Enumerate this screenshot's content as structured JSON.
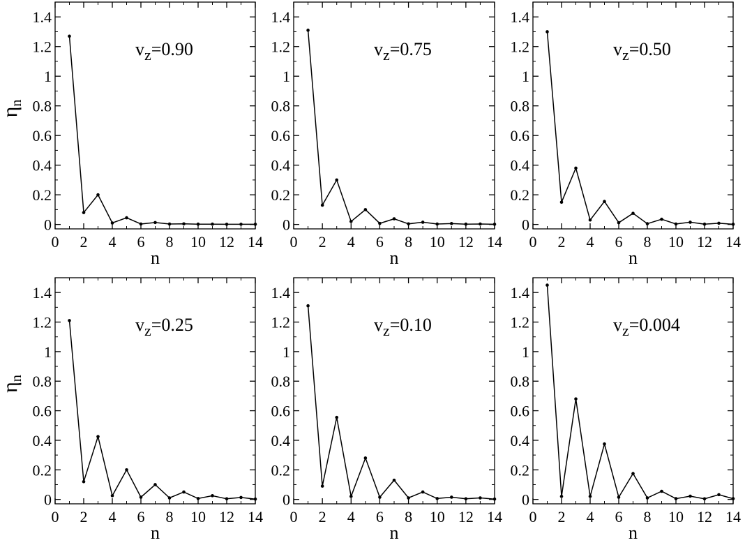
{
  "chart_data": [
    {
      "type": "line",
      "annotation": {
        "symbol": "v",
        "subscript": "z",
        "value": "=0.90"
      },
      "xlabel": "n",
      "ylabel": {
        "symbol": "η",
        "subscript": "n"
      },
      "xlim": [
        0,
        14
      ],
      "ylim": [
        -0.03,
        1.5
      ],
      "xticks": [
        0,
        2,
        4,
        6,
        8,
        10,
        12,
        14
      ],
      "yticks": [
        0,
        0.2,
        0.4,
        0.6,
        0.8,
        1,
        1.2,
        1.4
      ],
      "grid": false,
      "x": [
        1,
        2,
        3,
        4,
        5,
        6,
        7,
        8,
        9,
        10,
        11,
        12,
        13,
        14
      ],
      "y": [
        1.27,
        0.08,
        0.2,
        0.01,
        0.045,
        0.003,
        0.013,
        0.003,
        0.004,
        0.002,
        0.002,
        0.001,
        0.001,
        0.001
      ]
    },
    {
      "type": "line",
      "annotation": {
        "symbol": "v",
        "subscript": "z",
        "value": "=0.75"
      },
      "xlabel": "n",
      "ylabel": null,
      "xlim": [
        0,
        14
      ],
      "ylim": [
        -0.03,
        1.5
      ],
      "xticks": [
        0,
        2,
        4,
        6,
        8,
        10,
        12,
        14
      ],
      "yticks": [
        0,
        0.2,
        0.4,
        0.6,
        0.8,
        1,
        1.2,
        1.4
      ],
      "grid": false,
      "x": [
        1,
        2,
        3,
        4,
        5,
        6,
        7,
        8,
        9,
        10,
        11,
        12,
        13,
        14
      ],
      "y": [
        1.31,
        0.13,
        0.3,
        0.02,
        0.1,
        0.007,
        0.038,
        0.004,
        0.015,
        0.003,
        0.006,
        0.002,
        0.003,
        0.001
      ]
    },
    {
      "type": "line",
      "annotation": {
        "symbol": "v",
        "subscript": "z",
        "value": "=0.50"
      },
      "xlabel": "n",
      "ylabel": null,
      "xlim": [
        0,
        14
      ],
      "ylim": [
        -0.03,
        1.5
      ],
      "xticks": [
        0,
        2,
        4,
        6,
        8,
        10,
        12,
        14
      ],
      "yticks": [
        0,
        0.2,
        0.4,
        0.6,
        0.8,
        1,
        1.2,
        1.4
      ],
      "grid": false,
      "x": [
        1,
        2,
        3,
        4,
        5,
        6,
        7,
        8,
        9,
        10,
        11,
        12,
        13,
        14
      ],
      "y": [
        1.3,
        0.15,
        0.38,
        0.03,
        0.155,
        0.012,
        0.075,
        0.005,
        0.035,
        0.003,
        0.015,
        0.002,
        0.008,
        0.001
      ]
    },
    {
      "type": "line",
      "annotation": {
        "symbol": "v",
        "subscript": "z",
        "value": "=0.25"
      },
      "xlabel": "n",
      "ylabel": {
        "symbol": "η",
        "subscript": "n"
      },
      "xlim": [
        0,
        14
      ],
      "ylim": [
        -0.03,
        1.5
      ],
      "xticks": [
        0,
        2,
        4,
        6,
        8,
        10,
        12,
        14
      ],
      "yticks": [
        0,
        0.2,
        0.4,
        0.6,
        0.8,
        1,
        1.2,
        1.4
      ],
      "grid": false,
      "x": [
        1,
        2,
        3,
        4,
        5,
        6,
        7,
        8,
        9,
        10,
        11,
        12,
        13,
        14
      ],
      "y": [
        1.21,
        0.12,
        0.425,
        0.025,
        0.2,
        0.015,
        0.1,
        0.01,
        0.05,
        0.006,
        0.025,
        0.004,
        0.013,
        0.002
      ]
    },
    {
      "type": "line",
      "annotation": {
        "symbol": "v",
        "subscript": "z",
        "value": "=0.10"
      },
      "xlabel": "n",
      "ylabel": null,
      "xlim": [
        0,
        14
      ],
      "ylim": [
        -0.03,
        1.5
      ],
      "xticks": [
        0,
        2,
        4,
        6,
        8,
        10,
        12,
        14
      ],
      "yticks": [
        0,
        0.2,
        0.4,
        0.6,
        0.8,
        1,
        1.2,
        1.4
      ],
      "grid": false,
      "x": [
        1,
        2,
        3,
        4,
        5,
        6,
        7,
        8,
        9,
        10,
        11,
        12,
        13,
        14
      ],
      "y": [
        1.31,
        0.09,
        0.555,
        0.02,
        0.28,
        0.015,
        0.13,
        0.01,
        0.05,
        0.006,
        0.015,
        0.004,
        0.01,
        0.002
      ]
    },
    {
      "type": "line",
      "annotation": {
        "symbol": "v",
        "subscript": "z",
        "value": "=0.004"
      },
      "xlabel": "n",
      "ylabel": null,
      "xlim": [
        0,
        14
      ],
      "ylim": [
        -0.03,
        1.5
      ],
      "xticks": [
        0,
        2,
        4,
        6,
        8,
        10,
        12,
        14
      ],
      "yticks": [
        0,
        0.2,
        0.4,
        0.6,
        0.8,
        1,
        1.2,
        1.4
      ],
      "grid": false,
      "x": [
        1,
        2,
        3,
        4,
        5,
        6,
        7,
        8,
        9,
        10,
        11,
        12,
        13,
        14
      ],
      "y": [
        1.45,
        0.02,
        0.68,
        0.02,
        0.375,
        0.015,
        0.175,
        0.01,
        0.055,
        0.005,
        0.022,
        0.004,
        0.032,
        0.005
      ]
    }
  ]
}
